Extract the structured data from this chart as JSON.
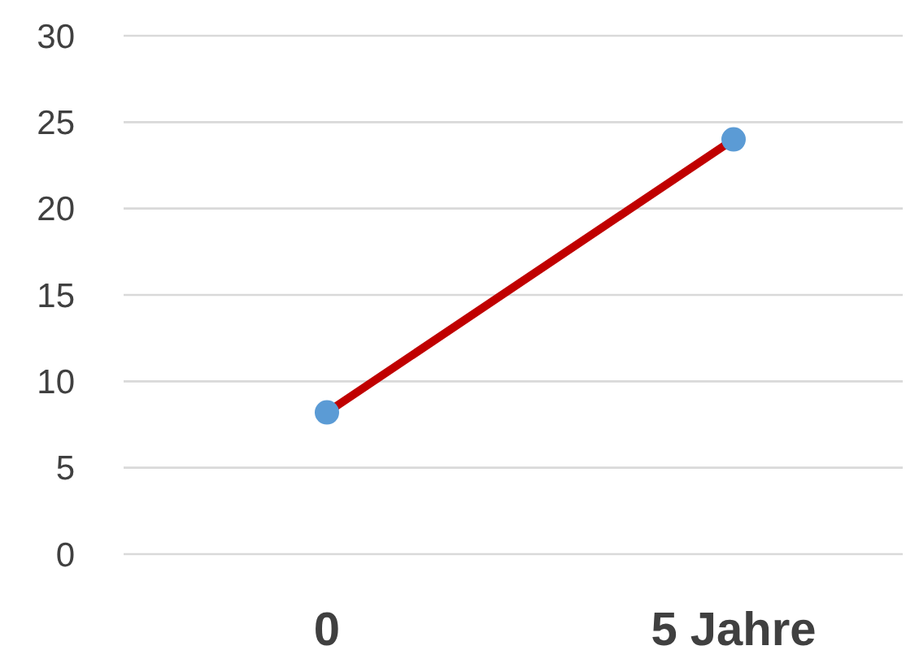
{
  "chart_data": {
    "type": "line",
    "categories": [
      "0",
      "5 Jahre"
    ],
    "series": [
      {
        "type": "line",
        "color": "#c00000",
        "marker": "none",
        "values": [
          8.2,
          24
        ]
      },
      {
        "type": "scatter",
        "color": "#5b9bd5",
        "marker": "circle",
        "x": [
          "0",
          "5 Jahre"
        ],
        "values": [
          8.2,
          24
        ]
      }
    ],
    "ylim": [
      0,
      30
    ],
    "yticks": [
      0,
      5,
      10,
      15,
      20,
      25,
      30
    ],
    "grid": "y"
  }
}
